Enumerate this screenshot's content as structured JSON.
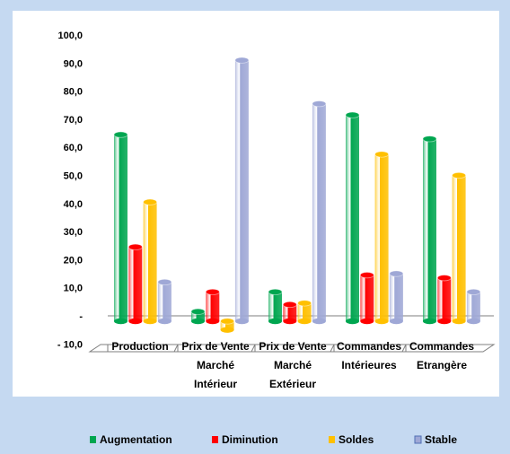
{
  "chart_data": {
    "type": "bar",
    "categories": [
      [
        "Production"
      ],
      [
        "Prix de Vente",
        "Marché",
        "Intérieur"
      ],
      [
        "Prix de Vente",
        "Marché",
        "Extérieur"
      ],
      [
        "Commandes",
        "Intérieures"
      ],
      [
        "Commandes",
        "Etrangère"
      ]
    ],
    "series": [
      {
        "name": "Augmentation",
        "color": "#00a650",
        "values": [
          64.5,
          1.5,
          8.5,
          71.5,
          63.0
        ]
      },
      {
        "name": "Diminution",
        "color": "#ff0000",
        "values": [
          24.5,
          8.5,
          4.0,
          14.5,
          13.5
        ]
      },
      {
        "name": "Soldes",
        "color": "#ffc000",
        "values": [
          40.5,
          -5.0,
          4.5,
          57.5,
          50.0
        ]
      },
      {
        "name": "Stable",
        "color": "#9fa8d6",
        "values": [
          12.0,
          91.0,
          75.5,
          15.0,
          8.5
        ]
      }
    ],
    "yticks": [
      "100,0",
      "90,0",
      "80,0",
      "70,0",
      "60,0",
      "50,0",
      "40,0",
      "30,0",
      "20,0",
      "10,0",
      "-",
      "- 10,0"
    ],
    "ylim": [
      -10,
      100
    ],
    "legend_position": "bottom",
    "grid": false
  }
}
